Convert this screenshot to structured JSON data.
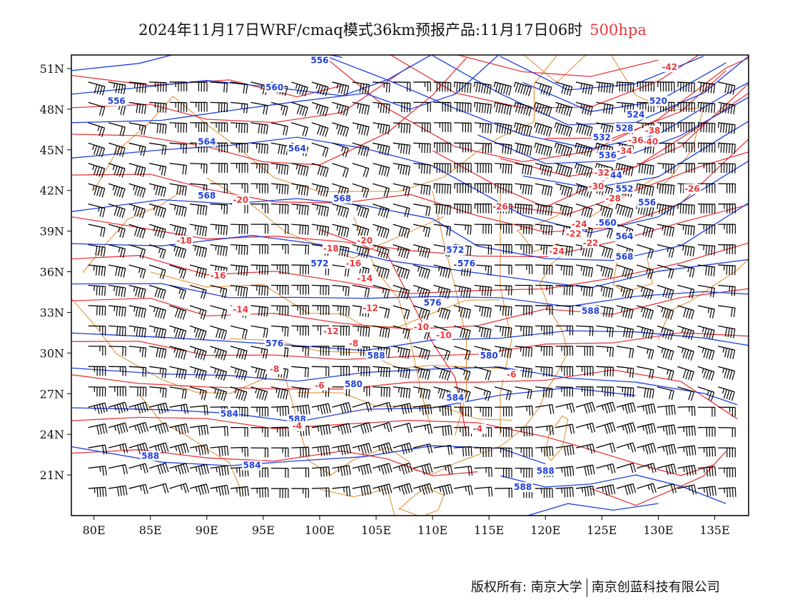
{
  "title": {
    "main": "2024年11月17日WRF/cmaq模式36km预报产品:11月17日06时",
    "level": "500hpa"
  },
  "axes": {
    "lon_ticks": [
      "80E",
      "85E",
      "90E",
      "95E",
      "100E",
      "105E",
      "110E",
      "115E",
      "120E",
      "125E",
      "130E",
      "135E"
    ],
    "lat_ticks": [
      "51N",
      "48N",
      "45N",
      "42N",
      "39N",
      "36N",
      "33N",
      "30N",
      "27N",
      "24N",
      "21N"
    ]
  },
  "colors": {
    "height_contour": "#1f3fe0",
    "temp_contour": "#e8383d",
    "border": "#e0892a",
    "wind_barb": "#000000"
  },
  "chart_data": {
    "type": "contour_map",
    "extent": {
      "lon": [
        78,
        138
      ],
      "lat": [
        18,
        52
      ]
    },
    "height_contour_labels": [
      "556",
      "556",
      "560",
      "564",
      "564",
      "568",
      "568",
      "572",
      "572",
      "576",
      "576",
      "580",
      "584",
      "588",
      "588",
      "584",
      "588",
      "588",
      "580",
      "584",
      "576",
      "572",
      "568",
      "564",
      "560",
      "556",
      "552",
      "544",
      "536",
      "532",
      "528",
      "524",
      "520",
      "588",
      "588"
    ],
    "temperature_contour_labels": [
      "-42",
      "-40",
      "-38",
      "-36",
      "-34",
      "-32",
      "-30",
      "-28",
      "-26",
      "-24",
      "-22",
      "-20",
      "-18",
      "-16",
      "-14",
      "-12",
      "-10",
      "-8",
      "-6",
      "-4",
      "-26",
      "-24",
      "-22",
      "-20",
      "-18",
      "-16",
      "-14",
      "-12",
      "-10",
      "-8",
      "-6",
      "-4"
    ]
  },
  "footer": {
    "left": "版权所有: 南京大学",
    "right": "南京创蓝科技有限公司"
  }
}
